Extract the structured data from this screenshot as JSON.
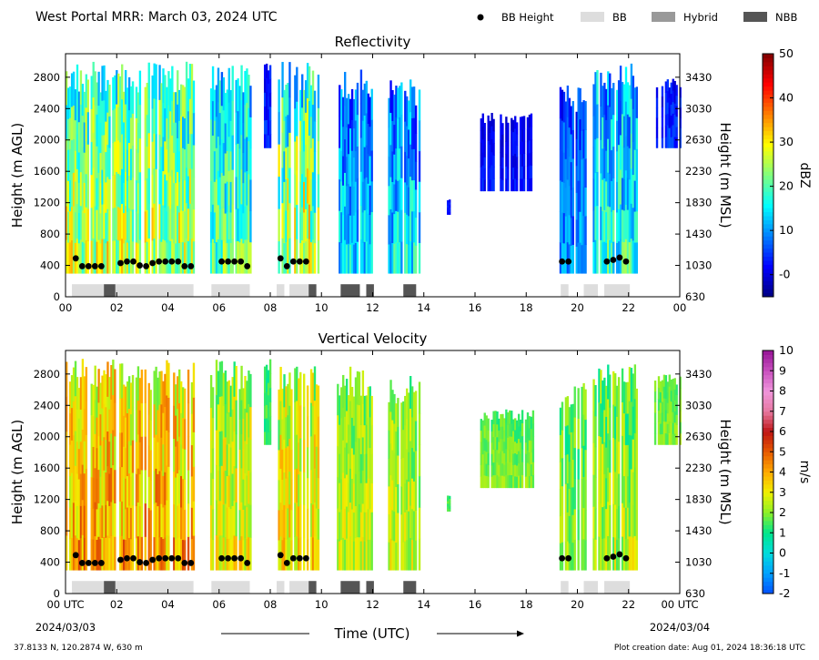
{
  "figure": {
    "header_title": "West Portal MRR:  March 03, 2024 UTC",
    "footer_location": "37.8133 N, 120.2874 W, 630 m",
    "footer_created": "Plot creation date: Aug 01, 2024 18:36:18 UTC",
    "x_axis_title": "Time (UTC)",
    "date_start": "2024/03/03",
    "date_end": "2024/03/04",
    "legend": [
      {
        "label": "BB Height",
        "marker": "dot",
        "color": "#000000"
      },
      {
        "label": "BB",
        "marker": "box",
        "color": "#dddddd"
      },
      {
        "label": "Hybrid",
        "marker": "box",
        "color": "#999999"
      },
      {
        "label": "NBB",
        "marker": "box",
        "color": "#555555"
      }
    ]
  },
  "chart_data": [
    {
      "type": "heatmap",
      "title": "Reflectivity",
      "xlabel": "",
      "ylabel": "Height (m AGL)",
      "ylabel_right": "Height (m MSL)",
      "colorbar_label": "dBZ",
      "colorbar_ticks": [
        "-0",
        "10",
        "20",
        "30",
        "40",
        "50"
      ],
      "colorbar_range": [
        -5,
        50
      ],
      "colormap": "jet",
      "xlim": [
        0,
        24
      ],
      "ylim": [
        0,
        3100
      ],
      "x_tick_labels": [
        "00",
        "02",
        "04",
        "06",
        "08",
        "10",
        "12",
        "14",
        "16",
        "18",
        "20",
        "22",
        "00"
      ],
      "y_ticks_left": [
        0,
        400,
        800,
        1200,
        1600,
        2000,
        2400,
        2800
      ],
      "y_ticks_right": [
        630,
        1030,
        1430,
        1830,
        2230,
        2630,
        3030,
        3430
      ],
      "echo_intervals": [
        {
          "start": 0.0,
          "end": 5.0,
          "top": 3000,
          "bottom": 300,
          "z_low": 8,
          "z_high": 35
        },
        {
          "start": 5.65,
          "end": 7.2,
          "top": 3000,
          "bottom": 300,
          "z_low": 5,
          "z_high": 28
        },
        {
          "start": 7.75,
          "end": 8.0,
          "top": 3000,
          "bottom": 1900,
          "z_low": -2,
          "z_high": 8
        },
        {
          "start": 8.3,
          "end": 9.9,
          "top": 3000,
          "bottom": 300,
          "z_low": 5,
          "z_high": 38
        },
        {
          "start": 10.6,
          "end": 12.0,
          "top": 2900,
          "bottom": 300,
          "z_low": 0,
          "z_high": 20
        },
        {
          "start": 12.6,
          "end": 13.8,
          "top": 2800,
          "bottom": 300,
          "z_low": 0,
          "z_high": 22
        },
        {
          "start": 14.9,
          "end": 15.0,
          "top": 1250,
          "bottom": 1050,
          "z_low": 0,
          "z_high": 5
        },
        {
          "start": 16.2,
          "end": 18.3,
          "top": 2350,
          "bottom": 1350,
          "z_low": -2,
          "z_high": 5
        },
        {
          "start": 19.3,
          "end": 20.3,
          "top": 2700,
          "bottom": 300,
          "z_low": -1,
          "z_high": 15
        },
        {
          "start": 20.6,
          "end": 22.3,
          "top": 3000,
          "bottom": 300,
          "z_low": 2,
          "z_high": 25
        },
        {
          "start": 23.0,
          "end": 24.0,
          "top": 2800,
          "bottom": 1900,
          "z_low": -2,
          "z_high": 8
        }
      ],
      "bb_height_points": [
        {
          "t": 0.4,
          "h": 490
        },
        {
          "t": 0.65,
          "h": 390
        },
        {
          "t": 0.9,
          "h": 390
        },
        {
          "t": 1.15,
          "h": 390
        },
        {
          "t": 1.4,
          "h": 390
        },
        {
          "t": 2.15,
          "h": 430
        },
        {
          "t": 2.4,
          "h": 450
        },
        {
          "t": 2.65,
          "h": 450
        },
        {
          "t": 2.9,
          "h": 400
        },
        {
          "t": 3.15,
          "h": 390
        },
        {
          "t": 3.4,
          "h": 430
        },
        {
          "t": 3.65,
          "h": 450
        },
        {
          "t": 3.9,
          "h": 450
        },
        {
          "t": 4.15,
          "h": 450
        },
        {
          "t": 4.4,
          "h": 450
        },
        {
          "t": 4.65,
          "h": 390
        },
        {
          "t": 4.9,
          "h": 390
        },
        {
          "t": 6.1,
          "h": 450
        },
        {
          "t": 6.35,
          "h": 450
        },
        {
          "t": 6.6,
          "h": 450
        },
        {
          "t": 6.85,
          "h": 450
        },
        {
          "t": 7.1,
          "h": 390
        },
        {
          "t": 8.4,
          "h": 490
        },
        {
          "t": 8.65,
          "h": 390
        },
        {
          "t": 8.9,
          "h": 450
        },
        {
          "t": 9.15,
          "h": 450
        },
        {
          "t": 9.4,
          "h": 450
        },
        {
          "t": 19.4,
          "h": 450
        },
        {
          "t": 19.65,
          "h": 450
        },
        {
          "t": 21.15,
          "h": 450
        },
        {
          "t": 21.4,
          "h": 470
        },
        {
          "t": 21.65,
          "h": 500
        },
        {
          "t": 21.9,
          "h": 450
        }
      ],
      "bb_type_intervals": [
        {
          "start": 0.25,
          "end": 1.5,
          "type": "BB"
        },
        {
          "start": 1.5,
          "end": 1.95,
          "type": "NBB"
        },
        {
          "start": 1.95,
          "end": 5.0,
          "type": "BB"
        },
        {
          "start": 5.7,
          "end": 7.2,
          "type": "BB"
        },
        {
          "start": 8.25,
          "end": 8.55,
          "type": "BB"
        },
        {
          "start": 8.75,
          "end": 9.5,
          "type": "BB"
        },
        {
          "start": 9.5,
          "end": 9.8,
          "type": "NBB"
        },
        {
          "start": 10.75,
          "end": 11.5,
          "type": "NBB"
        },
        {
          "start": 11.75,
          "end": 12.05,
          "type": "NBB"
        },
        {
          "start": 13.2,
          "end": 13.7,
          "type": "NBB"
        },
        {
          "start": 19.35,
          "end": 19.65,
          "type": "BB"
        },
        {
          "start": 20.25,
          "end": 20.8,
          "type": "BB"
        },
        {
          "start": 21.05,
          "end": 22.05,
          "type": "BB"
        }
      ]
    },
    {
      "type": "heatmap",
      "title": "Vertical Velocity",
      "xlabel": "Time (UTC)",
      "ylabel": "Height (m AGL)",
      "ylabel_right": "Height (m MSL)",
      "colorbar_label": "m/s",
      "colorbar_ticks": [
        "-2",
        "-1",
        "0",
        "1",
        "2",
        "3",
        "4",
        "5",
        "6",
        "7",
        "8",
        "9",
        "10"
      ],
      "colorbar_range": [
        -2,
        10
      ],
      "xlim": [
        0,
        24
      ],
      "ylim": [
        0,
        3100
      ],
      "x_tick_labels": [
        "00 UTC",
        "02",
        "04",
        "06",
        "08",
        "10",
        "12",
        "14",
        "16",
        "18",
        "20",
        "22",
        "00 UTC"
      ],
      "y_ticks_left": [
        0,
        400,
        800,
        1200,
        1600,
        2000,
        2400,
        2800
      ],
      "y_ticks_right": [
        630,
        1030,
        1430,
        1830,
        2230,
        2630,
        3030,
        3430
      ],
      "echo_intervals": [
        {
          "start": 0.0,
          "end": 5.0,
          "top": 3000,
          "bottom": 300,
          "v_low": 1.5,
          "v_high": 5.5
        },
        {
          "start": 5.65,
          "end": 7.2,
          "top": 3000,
          "bottom": 300,
          "v_low": 1.0,
          "v_high": 4.0
        },
        {
          "start": 7.75,
          "end": 8.0,
          "top": 3000,
          "bottom": 1900,
          "v_low": 0.5,
          "v_high": 2.0
        },
        {
          "start": 8.3,
          "end": 9.9,
          "top": 3000,
          "bottom": 300,
          "v_low": 1.0,
          "v_high": 4.5
        },
        {
          "start": 10.6,
          "end": 12.0,
          "top": 2900,
          "bottom": 300,
          "v_low": 1.0,
          "v_high": 3.5
        },
        {
          "start": 12.6,
          "end": 13.8,
          "top": 2800,
          "bottom": 300,
          "v_low": 1.0,
          "v_high": 3.5
        },
        {
          "start": 14.9,
          "end": 15.0,
          "top": 1250,
          "bottom": 1050,
          "v_low": 1.0,
          "v_high": 2.0
        },
        {
          "start": 16.2,
          "end": 18.3,
          "top": 2350,
          "bottom": 1350,
          "v_low": 1.0,
          "v_high": 2.5
        },
        {
          "start": 19.3,
          "end": 20.3,
          "top": 2700,
          "bottom": 300,
          "v_low": 0.5,
          "v_high": 3.0
        },
        {
          "start": 20.6,
          "end": 22.3,
          "top": 3000,
          "bottom": 300,
          "v_low": 0.5,
          "v_high": 3.5
        },
        {
          "start": 23.0,
          "end": 24.0,
          "top": 2800,
          "bottom": 1900,
          "v_low": 1.0,
          "v_high": 2.5
        }
      ],
      "bb_height_points": [
        {
          "t": 0.4,
          "h": 490
        },
        {
          "t": 0.65,
          "h": 390
        },
        {
          "t": 0.9,
          "h": 390
        },
        {
          "t": 1.15,
          "h": 390
        },
        {
          "t": 1.4,
          "h": 390
        },
        {
          "t": 2.15,
          "h": 430
        },
        {
          "t": 2.4,
          "h": 450
        },
        {
          "t": 2.65,
          "h": 450
        },
        {
          "t": 2.9,
          "h": 400
        },
        {
          "t": 3.15,
          "h": 390
        },
        {
          "t": 3.4,
          "h": 430
        },
        {
          "t": 3.65,
          "h": 450
        },
        {
          "t": 3.9,
          "h": 450
        },
        {
          "t": 4.15,
          "h": 450
        },
        {
          "t": 4.4,
          "h": 450
        },
        {
          "t": 4.65,
          "h": 390
        },
        {
          "t": 4.9,
          "h": 390
        },
        {
          "t": 6.1,
          "h": 450
        },
        {
          "t": 6.35,
          "h": 450
        },
        {
          "t": 6.6,
          "h": 450
        },
        {
          "t": 6.85,
          "h": 450
        },
        {
          "t": 7.1,
          "h": 390
        },
        {
          "t": 8.4,
          "h": 490
        },
        {
          "t": 8.65,
          "h": 390
        },
        {
          "t": 8.9,
          "h": 450
        },
        {
          "t": 9.15,
          "h": 450
        },
        {
          "t": 9.4,
          "h": 450
        },
        {
          "t": 19.4,
          "h": 450
        },
        {
          "t": 19.65,
          "h": 450
        },
        {
          "t": 21.15,
          "h": 450
        },
        {
          "t": 21.4,
          "h": 470
        },
        {
          "t": 21.65,
          "h": 500
        },
        {
          "t": 21.9,
          "h": 450
        }
      ],
      "bb_type_intervals": [
        {
          "start": 0.25,
          "end": 1.5,
          "type": "BB"
        },
        {
          "start": 1.5,
          "end": 1.95,
          "type": "NBB"
        },
        {
          "start": 1.95,
          "end": 5.0,
          "type": "BB"
        },
        {
          "start": 5.7,
          "end": 7.2,
          "type": "BB"
        },
        {
          "start": 8.25,
          "end": 8.55,
          "type": "BB"
        },
        {
          "start": 8.75,
          "end": 9.5,
          "type": "BB"
        },
        {
          "start": 9.5,
          "end": 9.8,
          "type": "NBB"
        },
        {
          "start": 10.75,
          "end": 11.5,
          "type": "NBB"
        },
        {
          "start": 11.75,
          "end": 12.05,
          "type": "NBB"
        },
        {
          "start": 13.2,
          "end": 13.7,
          "type": "NBB"
        },
        {
          "start": 19.35,
          "end": 19.65,
          "type": "BB"
        },
        {
          "start": 20.25,
          "end": 20.8,
          "type": "BB"
        },
        {
          "start": 21.05,
          "end": 22.05,
          "type": "BB"
        }
      ]
    }
  ]
}
